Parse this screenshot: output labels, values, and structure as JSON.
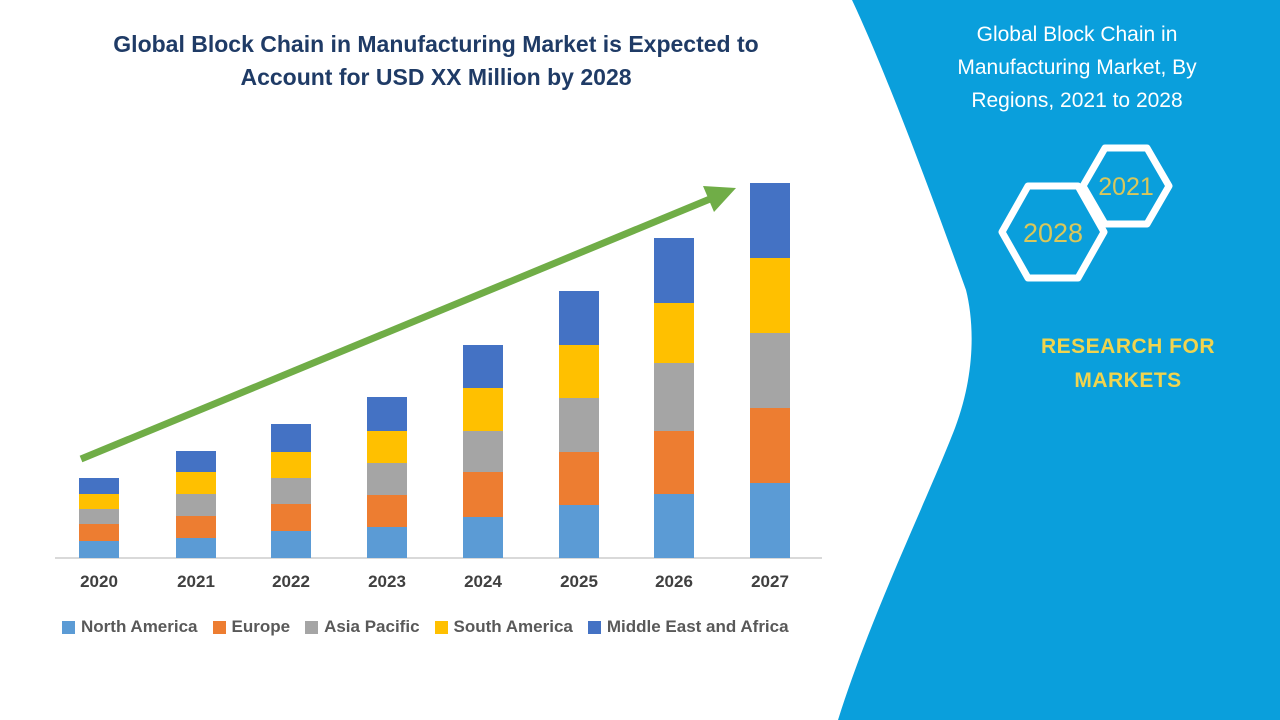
{
  "page": {
    "background_color": "#FFFFFF"
  },
  "chart_title": {
    "text": "Global Block Chain in Manufacturing Market is Expected to Account for USD XX Million by 2028",
    "color": "#1F3B66"
  },
  "chart_data": {
    "type": "bar",
    "stacked": true,
    "title": "Global Block Chain in Manufacturing Market is Expected to Account for USD XX Million by 2028",
    "categories": [
      "2020",
      "2021",
      "2022",
      "2023",
      "2024",
      "2025",
      "2026",
      "2027"
    ],
    "series": [
      {
        "name": "North America",
        "color": "#5B9BD5",
        "values": [
          17,
          20,
          27,
          31,
          41,
          53,
          64,
          75
        ]
      },
      {
        "name": "Europe",
        "color": "#ED7D31",
        "values": [
          17,
          22,
          27,
          32,
          45,
          53,
          63,
          75
        ]
      },
      {
        "name": "Asia Pacific",
        "color": "#A5A5A5",
        "values": [
          15,
          22,
          26,
          32,
          41,
          54,
          68,
          75
        ]
      },
      {
        "name": "South America",
        "color": "#FFC000",
        "values": [
          15,
          22,
          26,
          32,
          43,
          53,
          60,
          75
        ]
      },
      {
        "name": "Middle East and Africa",
        "color": "#4472C4",
        "values": [
          16,
          21,
          28,
          34,
          43,
          54,
          65,
          75
        ]
      }
    ],
    "xlabel": "",
    "ylabel": "",
    "ylim": [
      0,
      400
    ],
    "grid": false,
    "legend_position": "bottom",
    "annotations": [
      {
        "type": "trend-arrow",
        "color": "#70AD47",
        "from_category": "2020",
        "to_category": "2027",
        "direction": "up-right"
      }
    ]
  },
  "axis": {
    "label_color": "#404040",
    "line_color": "#D9D9D9"
  },
  "legend": {
    "text_color": "#595959"
  },
  "side_panel": {
    "background_color": "#0A9FDC",
    "title_lines": [
      "Global Block Chain in",
      "Manufacturing Market, By",
      "Regions, 2021 to 2028"
    ],
    "title_color": "#FFFFFF",
    "hexagons": [
      {
        "label": "2028"
      },
      {
        "label": "2021"
      }
    ],
    "hexagon_outline_color": "#FFFFFF",
    "hexagon_label_color": "#D9C75B",
    "brand_lines": [
      "RESEARCH FOR",
      "MARKETS"
    ],
    "brand_color": "#F0D44E"
  }
}
